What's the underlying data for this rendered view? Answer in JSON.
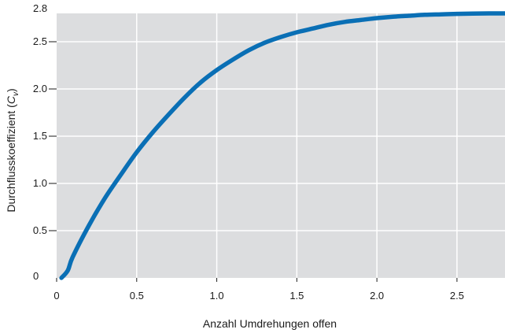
{
  "chart_data": {
    "type": "line",
    "title": "",
    "xlabel": "Anzahl Umdrehungen offen",
    "ylabel": {
      "main": "Durchflusskoeffizient (",
      "var": "C",
      "sub": "v",
      "tail": ")"
    },
    "xlim": [
      0,
      2.8
    ],
    "ylim": [
      0,
      2.8
    ],
    "x_ticks": [
      0,
      0.5,
      1.0,
      1.5,
      2.0,
      2.5
    ],
    "x_tick_labels": [
      "0",
      "0.5",
      "1.0",
      "1.5",
      "2.0",
      "2.5"
    ],
    "y_ticks": [
      0,
      0.5,
      1.0,
      1.5,
      2.0,
      2.5,
      2.8
    ],
    "y_tick_labels": [
      "0",
      "0.5",
      "1.0",
      "1.5",
      "2.0",
      "2.5",
      "2.8"
    ],
    "grid": true,
    "background_color": "#dcdddf",
    "grid_color": "#ffffff",
    "series": [
      {
        "color": "#0a6fb5",
        "x": [
          0.03,
          0.07,
          0.1,
          0.2,
          0.3,
          0.4,
          0.5,
          0.6,
          0.7,
          0.8,
          0.9,
          1.0,
          1.1,
          1.2,
          1.3,
          1.4,
          1.5,
          1.6,
          1.7,
          1.8,
          1.9,
          2.0,
          2.1,
          2.2,
          2.3,
          2.4,
          2.5,
          2.6,
          2.7,
          2.8
        ],
        "y": [
          0.0,
          0.08,
          0.22,
          0.55,
          0.84,
          1.09,
          1.33,
          1.54,
          1.73,
          1.91,
          2.07,
          2.2,
          2.31,
          2.41,
          2.49,
          2.55,
          2.6,
          2.64,
          2.68,
          2.71,
          2.73,
          2.75,
          2.765,
          2.775,
          2.785,
          2.79,
          2.795,
          2.798,
          2.8,
          2.8
        ]
      }
    ]
  }
}
